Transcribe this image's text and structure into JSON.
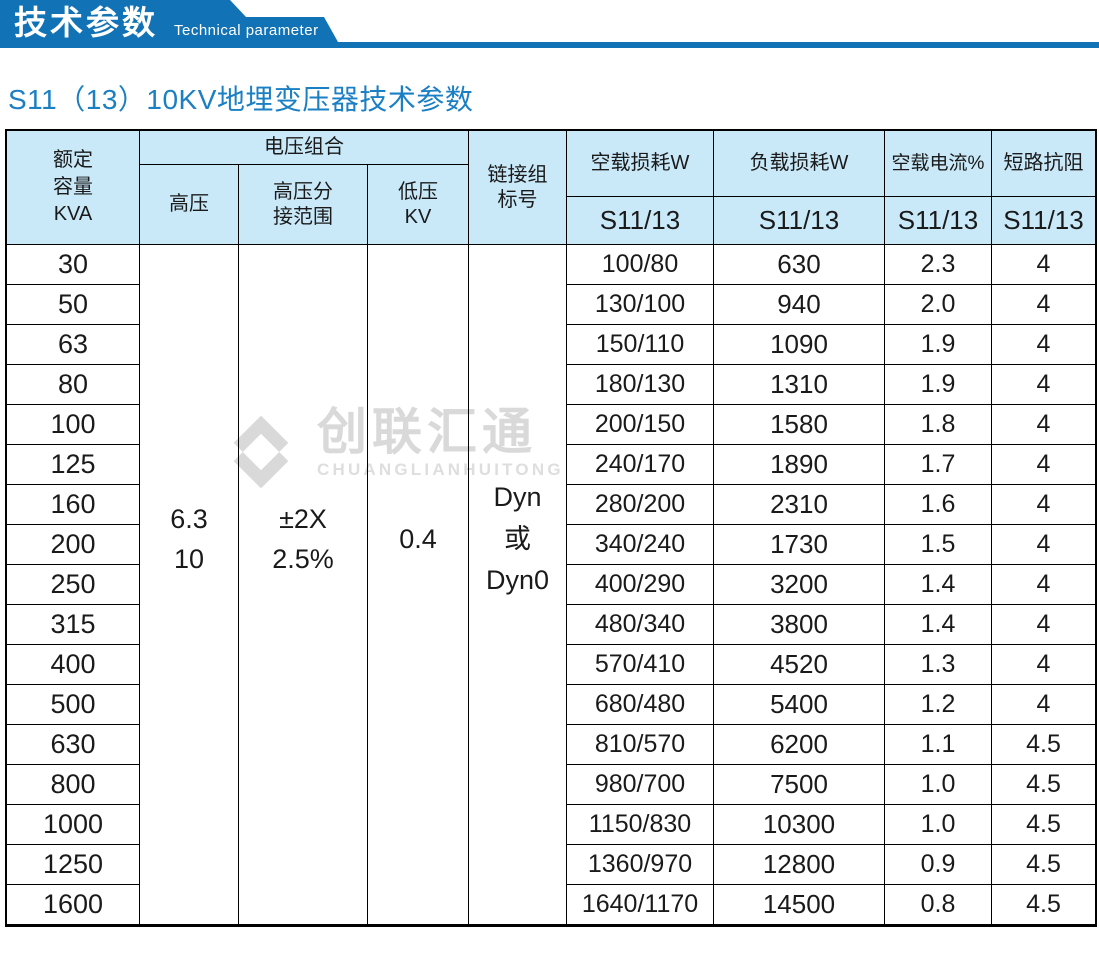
{
  "colors": {
    "banner_blue": "#1173b5",
    "title_blue": "#1b7fc4",
    "header_bg": "#c9e9f9",
    "watermark_gray": "#d9d9d9",
    "border_black": "#000000"
  },
  "banner": {
    "title_cn": "技术参数",
    "title_en": "Technical parameter"
  },
  "page_title": "S11（13）10KV地埋变压器技术参数",
  "watermark": {
    "logo_cn": "创联汇通",
    "logo_en": "CHUANGLIANHUITONG"
  },
  "table": {
    "header": {
      "capacity": "额定\n容量\nKVA",
      "voltage_group": "电压组合",
      "hv": "高压",
      "hv_tap": "高压分\n接范围",
      "lv": "低压\nKV",
      "connection": "链接组\n标号",
      "no_load_loss": "空载损耗W",
      "load_loss": "负载损耗W",
      "no_load_current": "空载电流%",
      "impedance": "短路抗阻",
      "model": "S11/13"
    },
    "merged": {
      "hv_value": "6.3\n10",
      "hv_tap_value": "±2X\n2.5%",
      "lv_value": "0.4",
      "connection_value": "Dyn\n或\nDyn0"
    },
    "rows": [
      {
        "kva": "30",
        "no_load_loss": "100/80",
        "load_loss": "630",
        "no_load_current": "2.3",
        "impedance": "4"
      },
      {
        "kva": "50",
        "no_load_loss": "130/100",
        "load_loss": "940",
        "no_load_current": "2.0",
        "impedance": "4"
      },
      {
        "kva": "63",
        "no_load_loss": "150/110",
        "load_loss": "1090",
        "no_load_current": "1.9",
        "impedance": "4"
      },
      {
        "kva": "80",
        "no_load_loss": "180/130",
        "load_loss": "1310",
        "no_load_current": "1.9",
        "impedance": "4"
      },
      {
        "kva": "100",
        "no_load_loss": "200/150",
        "load_loss": "1580",
        "no_load_current": "1.8",
        "impedance": "4"
      },
      {
        "kva": "125",
        "no_load_loss": "240/170",
        "load_loss": "1890",
        "no_load_current": "1.7",
        "impedance": "4"
      },
      {
        "kva": "160",
        "no_load_loss": "280/200",
        "load_loss": "2310",
        "no_load_current": "1.6",
        "impedance": "4"
      },
      {
        "kva": "200",
        "no_load_loss": "340/240",
        "load_loss": "1730",
        "no_load_current": "1.5",
        "impedance": "4"
      },
      {
        "kva": "250",
        "no_load_loss": "400/290",
        "load_loss": "3200",
        "no_load_current": "1.4",
        "impedance": "4"
      },
      {
        "kva": "315",
        "no_load_loss": "480/340",
        "load_loss": "3800",
        "no_load_current": "1.4",
        "impedance": "4"
      },
      {
        "kva": "400",
        "no_load_loss": "570/410",
        "load_loss": "4520",
        "no_load_current": "1.3",
        "impedance": "4"
      },
      {
        "kva": "500",
        "no_load_loss": "680/480",
        "load_loss": "5400",
        "no_load_current": "1.2",
        "impedance": "4"
      },
      {
        "kva": "630",
        "no_load_loss": "810/570",
        "load_loss": "6200",
        "no_load_current": "1.1",
        "impedance": "4.5"
      },
      {
        "kva": "800",
        "no_load_loss": "980/700",
        "load_loss": "7500",
        "no_load_current": "1.0",
        "impedance": "4.5"
      },
      {
        "kva": "1000",
        "no_load_loss": "1150/830",
        "load_loss": "10300",
        "no_load_current": "1.0",
        "impedance": "4.5"
      },
      {
        "kva": "1250",
        "no_load_loss": "1360/970",
        "load_loss": "12800",
        "no_load_current": "0.9",
        "impedance": "4.5"
      },
      {
        "kva": "1600",
        "no_load_loss": "1640/1170",
        "load_loss": "14500",
        "no_load_current": "0.8",
        "impedance": "4.5"
      }
    ]
  }
}
